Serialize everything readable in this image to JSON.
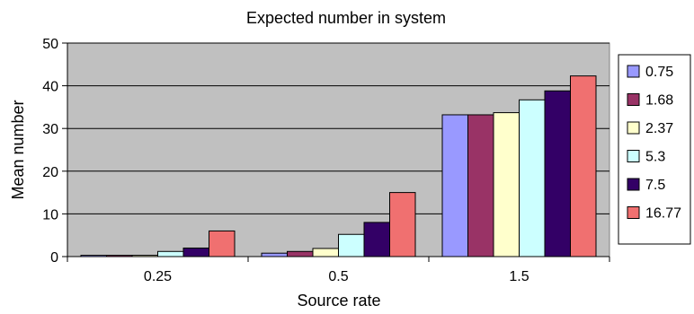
{
  "chart_data": {
    "type": "bar",
    "title": "Expected number in system",
    "xlabel": "Source rate",
    "ylabel": "Mean number",
    "categories": [
      "0.25",
      "0.5",
      "1.5"
    ],
    "ylim": [
      0,
      50
    ],
    "yticks": [
      "0",
      "10",
      "20",
      "30",
      "40",
      "50"
    ],
    "grid": true,
    "legend_position": "right",
    "series": [
      {
        "name": "0.75",
        "color": "#9999ff",
        "values": [
          0.3,
          0.8,
          33.2
        ]
      },
      {
        "name": "1.68",
        "color": "#993366",
        "values": [
          0.3,
          1.2,
          33.2
        ]
      },
      {
        "name": "2.37",
        "color": "#ffffcc",
        "values": [
          0.3,
          1.9,
          33.7
        ]
      },
      {
        "name": "5.3",
        "color": "#ccffff",
        "values": [
          1.2,
          5.2,
          36.7
        ]
      },
      {
        "name": "7.5",
        "color": "#330066",
        "values": [
          2.0,
          8.0,
          38.8
        ]
      },
      {
        "name": "16.77",
        "color": "#f07070",
        "values": [
          6.0,
          15.0,
          42.3
        ]
      }
    ],
    "plot_background": "#c0c0c0"
  }
}
